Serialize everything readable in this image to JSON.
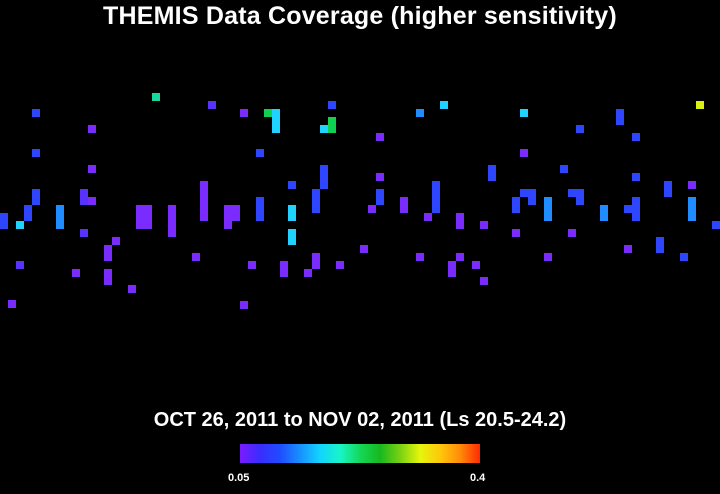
{
  "title": "THEMIS Data Coverage (higher sensitivity)",
  "subtitle": "OCT 26, 2011 to NOV 02, 2011 (Ls 20.5-24.2)",
  "colorbar": {
    "min_label": "0.05",
    "max_label": "0.4",
    "colors": [
      "#7a1cff",
      "#3a2cff",
      "#1f4dff",
      "#1890ff",
      "#12d4ff",
      "#18f5c8",
      "#14d85a",
      "#18b81e",
      "#7ad012",
      "#e6f50c",
      "#ffc80a",
      "#ff8c08",
      "#ff2a06"
    ]
  },
  "colors": {
    "background": "#000000",
    "violet": "#7a2cff",
    "indigo": "#5a32ff",
    "blue": "#2e46ff",
    "azure": "#1f8cff",
    "cyan": "#1fd2ff",
    "green": "#10d050",
    "teal": "#18d8a0",
    "yellow": "#d8f012"
  }
}
